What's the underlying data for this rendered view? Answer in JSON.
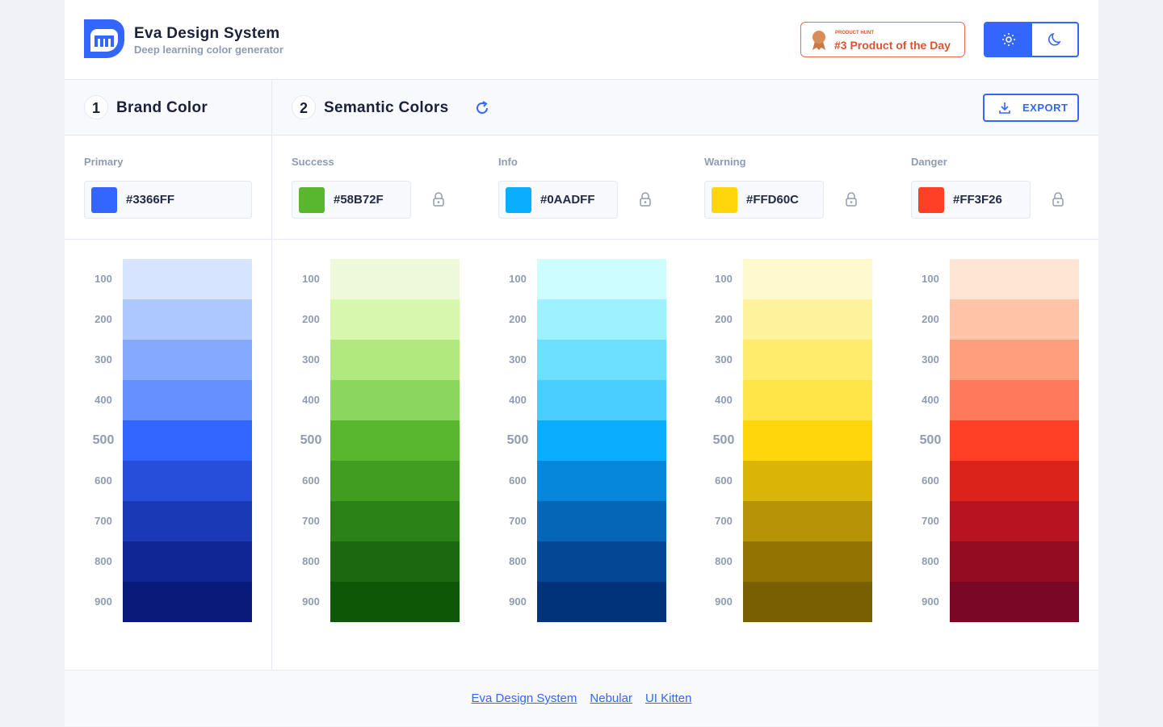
{
  "header": {
    "title": "Eva Design System",
    "subtitle": "Deep learning color generator",
    "badge": {
      "kicker": "PRODUCT HUNT",
      "text": "#3 Product of the Day"
    }
  },
  "sections": [
    {
      "number": "1",
      "title": "Brand Color"
    },
    {
      "number": "2",
      "title": "Semantic Colors"
    }
  ],
  "export_button": "EXPORT",
  "palettes": [
    {
      "name": "Primary",
      "hex": "#3366FF",
      "shades": [
        {
          "name": "100",
          "color": "#D6E4FF"
        },
        {
          "name": "200",
          "color": "#ADC8FF"
        },
        {
          "name": "300",
          "color": "#84A9FF"
        },
        {
          "name": "400",
          "color": "#6690FF"
        },
        {
          "name": "500",
          "color": "#3366FF"
        },
        {
          "name": "600",
          "color": "#254EDB"
        },
        {
          "name": "700",
          "color": "#1939B7"
        },
        {
          "name": "800",
          "color": "#102693"
        },
        {
          "name": "900",
          "color": "#091A7A"
        }
      ]
    },
    {
      "name": "Success",
      "hex": "#58B72F",
      "shades": [
        {
          "name": "100",
          "color": "#EEF9D9"
        },
        {
          "name": "200",
          "color": "#D7F8AC"
        },
        {
          "name": "300",
          "color": "#B2E97E"
        },
        {
          "name": "400",
          "color": "#8BD65E"
        },
        {
          "name": "500",
          "color": "#58B72F"
        },
        {
          "name": "600",
          "color": "#409D22"
        },
        {
          "name": "700",
          "color": "#2B8317"
        },
        {
          "name": "800",
          "color": "#1A690E"
        },
        {
          "name": "900",
          "color": "#0E5707"
        }
      ]
    },
    {
      "name": "Info",
      "hex": "#0AADFF",
      "shades": [
        {
          "name": "100",
          "color": "#CEFDFF"
        },
        {
          "name": "200",
          "color": "#9EF2FF"
        },
        {
          "name": "300",
          "color": "#6DE0FF"
        },
        {
          "name": "400",
          "color": "#49CEFF"
        },
        {
          "name": "500",
          "color": "#0AADFF"
        },
        {
          "name": "600",
          "color": "#0787DB"
        },
        {
          "name": "700",
          "color": "#0566B7"
        },
        {
          "name": "800",
          "color": "#034893"
        },
        {
          "name": "900",
          "color": "#01337A"
        }
      ]
    },
    {
      "name": "Warning",
      "hex": "#FFD60C",
      "shades": [
        {
          "name": "100",
          "color": "#FFFACE"
        },
        {
          "name": "200",
          "color": "#FFF49D"
        },
        {
          "name": "300",
          "color": "#FFEC6D"
        },
        {
          "name": "400",
          "color": "#FFE548"
        },
        {
          "name": "500",
          "color": "#FFD60C"
        },
        {
          "name": "600",
          "color": "#DBB408"
        },
        {
          "name": "700",
          "color": "#B79406"
        },
        {
          "name": "800",
          "color": "#937403"
        },
        {
          "name": "900",
          "color": "#7A5E02"
        }
      ]
    },
    {
      "name": "Danger",
      "hex": "#FF3F26",
      "shades": [
        {
          "name": "100",
          "color": "#FFE5D3"
        },
        {
          "name": "200",
          "color": "#FFC5A8"
        },
        {
          "name": "300",
          "color": "#FF9E7D"
        },
        {
          "name": "400",
          "color": "#FF795D"
        },
        {
          "name": "500",
          "color": "#FF3F26"
        },
        {
          "name": "600",
          "color": "#DB221B"
        },
        {
          "name": "700",
          "color": "#B71320"
        },
        {
          "name": "800",
          "color": "#930C22"
        },
        {
          "name": "900",
          "color": "#7A0724"
        }
      ]
    }
  ],
  "footer": {
    "links": [
      "Eva Design System",
      "Nebular",
      "UI Kitten"
    ]
  }
}
